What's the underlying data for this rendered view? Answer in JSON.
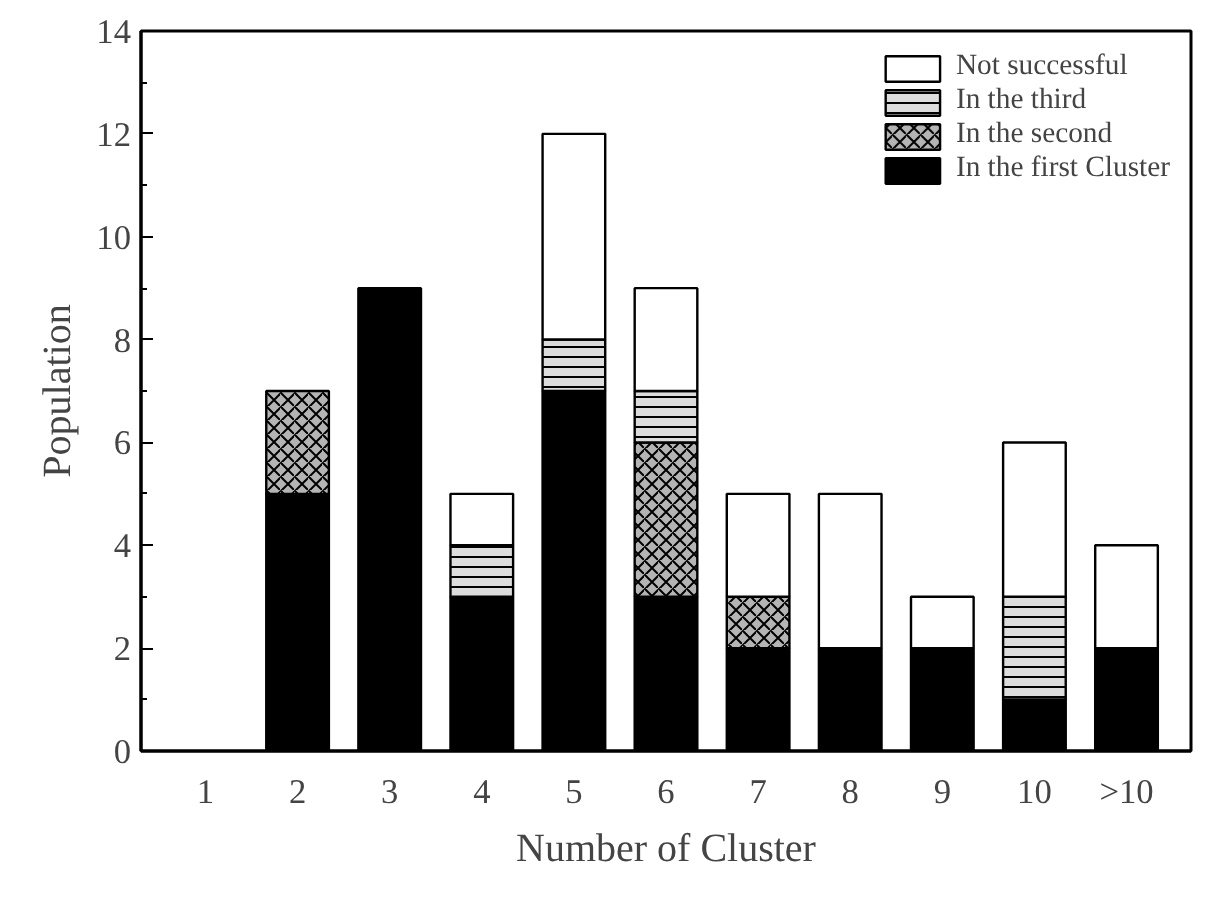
{
  "chart_data": {
    "type": "bar",
    "stacked": true,
    "xlabel": "Number of Cluster",
    "ylabel": "Population",
    "categories": [
      "1",
      "2",
      "3",
      "4",
      "5",
      "6",
      "7",
      "8",
      "9",
      "10",
      ">10"
    ],
    "series": [
      {
        "name": "In the first Cluster",
        "color": "#000000",
        "values": [
          0,
          5,
          9,
          3,
          7,
          3,
          2,
          2,
          2,
          1,
          2
        ]
      },
      {
        "name": "In the second",
        "color": "#b4b4b4",
        "values": [
          0,
          2,
          0,
          0,
          0,
          3,
          1,
          0,
          0,
          0,
          0
        ]
      },
      {
        "name": "In the third",
        "color": "#dcdcdc",
        "values": [
          0,
          0,
          0,
          1,
          1,
          1,
          0,
          0,
          0,
          2,
          0
        ]
      },
      {
        "name": "Not successful",
        "color": "#ffffff",
        "values": [
          0,
          0,
          0,
          1,
          4,
          2,
          2,
          3,
          1,
          3,
          2
        ]
      }
    ],
    "ylim": [
      0,
      14
    ],
    "yticks": [
      0,
      2,
      4,
      6,
      8,
      10,
      12,
      14
    ],
    "grid": false,
    "legend": "top right"
  }
}
